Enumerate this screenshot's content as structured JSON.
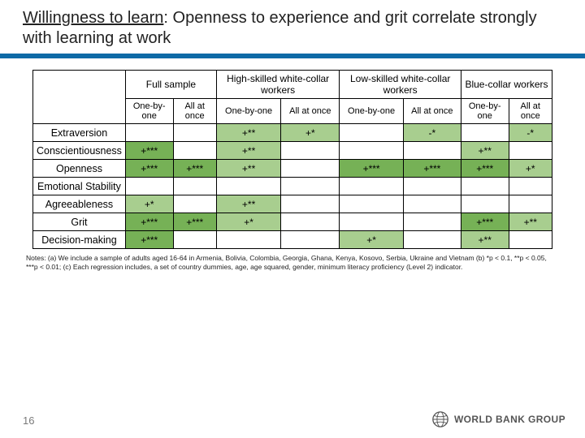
{
  "title": {
    "underlined": "Willingness to learn",
    "rest": ": Openness to experience and grit correlate strongly with learning at work"
  },
  "groups": [
    "Full sample",
    "High-skilled white-collar workers",
    "Low-skilled white-collar workers",
    "Blue-collar workers"
  ],
  "sub": {
    "a": "One-by-one",
    "b": "All at once"
  },
  "rows": [
    "Extraversion",
    "Conscientiousness",
    "Openness",
    "Emotional Stability",
    "Agreeableness",
    "Grit",
    "Decision-making"
  ],
  "cells": {
    "Extraversion": [
      "",
      "",
      "+**",
      "+*",
      "",
      "-*",
      "",
      "-*"
    ],
    "Conscientiousness": [
      "+***",
      "",
      "+**",
      "",
      "",
      "",
      "+**",
      ""
    ],
    "Openness": [
      "+***",
      "+***",
      "+**",
      "",
      "+***",
      "+***",
      "+***",
      "+*"
    ],
    "Emotional Stability": [
      "",
      "",
      "",
      "",
      "",
      "",
      "",
      ""
    ],
    "Agreeableness": [
      "+*",
      "",
      "+**",
      "",
      "",
      "",
      "",
      ""
    ],
    "Grit": [
      "+***",
      "+***",
      "+*",
      "",
      "",
      "",
      "+***",
      "+**"
    ],
    "Decision-making": [
      "+***",
      "",
      "",
      "",
      "+*",
      "",
      "+**",
      ""
    ]
  },
  "colors": {
    "mid": "#a8ce8f",
    "dark": "#76b156",
    "rule": "#0e6aa6"
  },
  "notes": "Notes: (a) We include a sample of adults aged 16-64 in Armenia, Bolivia, Colombia, Georgia, Ghana, Kenya, Kosovo, Serbia, Ukraine and Vietnam (b) *p < 0.1, **p < 0.05, ***p < 0.01; (c) Each regression includes, a set of country dummies, age, age squared, gender, minimum literacy proficiency (Level 2) indicator.",
  "page": "16",
  "logo": "WORLD BANK GROUP"
}
